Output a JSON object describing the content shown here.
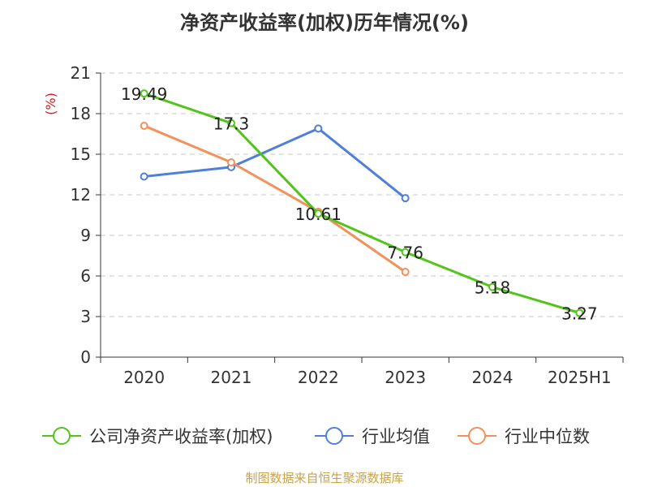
{
  "chart_data": {
    "type": "line",
    "title": "净资产收益率(加权)历年情况(%)",
    "ylabel": "(%)",
    "categories": [
      "2020",
      "2021",
      "2022",
      "2023",
      "2024",
      "2025H1"
    ],
    "ylim": [
      0,
      21
    ],
    "yticks": [
      0,
      3,
      6,
      9,
      12,
      15,
      18,
      21
    ],
    "grid": true,
    "legend_position": "bottom",
    "series": [
      {
        "name": "公司净资产收益率(加权)",
        "color": "#52c41a",
        "values": [
          19.49,
          17.3,
          10.61,
          7.76,
          5.18,
          3.27
        ],
        "labels": [
          "19.49",
          "17.3",
          "10.61",
          "7.76",
          "5.18",
          "3.27"
        ]
      },
      {
        "name": "行业均值",
        "color": "#4f7fdb",
        "values": [
          13.35,
          14.05,
          16.9,
          11.75,
          null,
          null
        ]
      },
      {
        "name": "行业中位数",
        "color": "#f5905a",
        "values": [
          17.1,
          14.4,
          10.75,
          6.3,
          null,
          null
        ]
      }
    ]
  },
  "source": "制图数据来自恒生聚源数据库"
}
